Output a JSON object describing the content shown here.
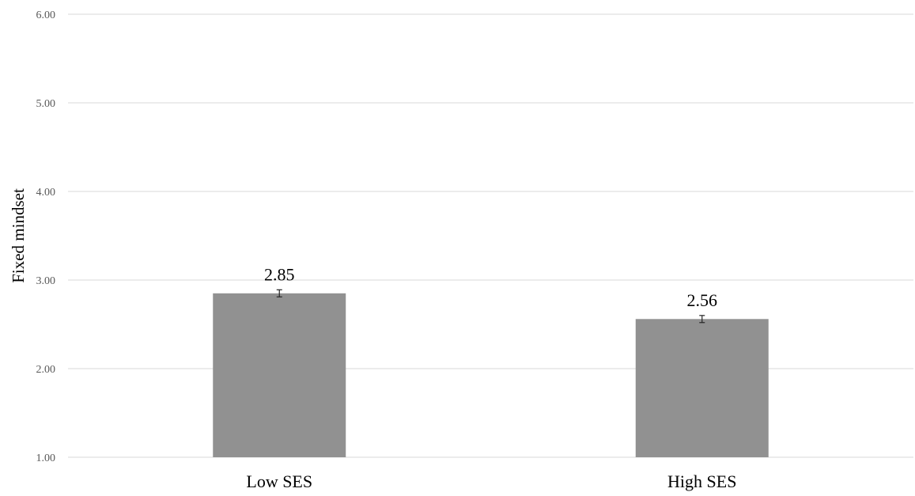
{
  "chart_data": {
    "type": "bar",
    "title": "",
    "xlabel": "",
    "ylabel": "Fixed mindset",
    "categories": [
      "Low SES",
      "High SES"
    ],
    "values": [
      2.85,
      2.56
    ],
    "data_labels": [
      "2.85",
      "2.56"
    ],
    "error_bars": [
      0.04,
      0.04
    ],
    "ylim": [
      1.0,
      6.0
    ],
    "yticks": [
      1.0,
      2.0,
      3.0,
      4.0,
      5.0,
      6.0
    ],
    "ytick_labels": [
      "1.00",
      "2.00",
      "3.00",
      "4.00",
      "5.00",
      "6.00"
    ],
    "grid": true,
    "legend": "none",
    "colors": {
      "bar": "#919191",
      "grid": "#d9d9d9",
      "error_bar": "#262626"
    }
  }
}
